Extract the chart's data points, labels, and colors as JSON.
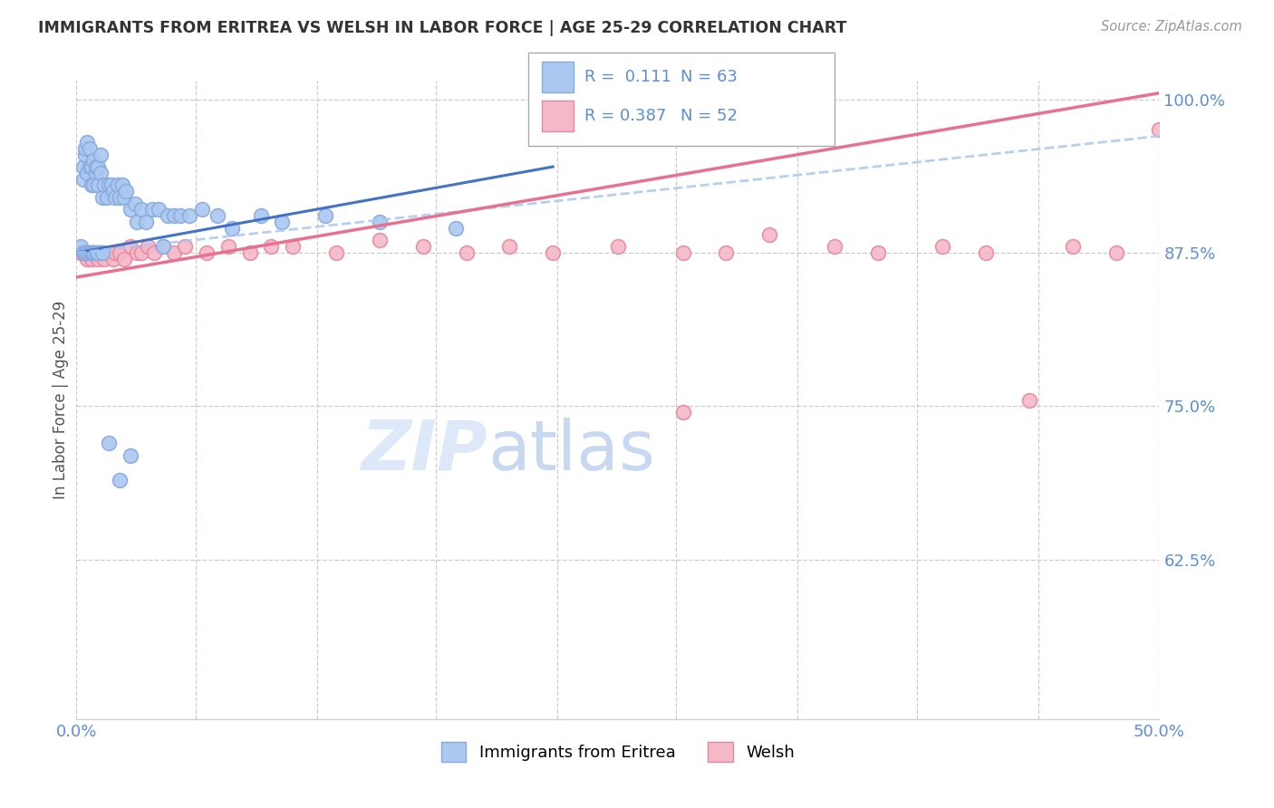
{
  "title": "IMMIGRANTS FROM ERITREA VS WELSH IN LABOR FORCE | AGE 25-29 CORRELATION CHART",
  "source": "Source: ZipAtlas.com",
  "ylabel": "In Labor Force | Age 25-29",
  "xlim": [
    0.0,
    0.5
  ],
  "ylim": [
    0.495,
    1.015
  ],
  "xtick_labels": [
    "0.0%",
    "",
    "",
    "",
    "",
    "",
    "",
    "",
    "",
    "50.0%"
  ],
  "xtick_positions": [
    0.0,
    0.055,
    0.111,
    0.166,
    0.222,
    0.277,
    0.333,
    0.388,
    0.444,
    0.5
  ],
  "ytick_labels": [
    "100.0%",
    "87.5%",
    "75.0%",
    "62.5%",
    ""
  ],
  "ytick_positions": [
    1.0,
    0.875,
    0.75,
    0.625,
    0.5
  ],
  "grid_color": "#cccccc",
  "background_color": "#ffffff",
  "title_color": "#333333",
  "axis_color": "#5b8dd9",
  "watermark_color": "#dde8f8",
  "watermark_fontsize": 55,
  "series": [
    {
      "name": "Immigrants from Eritrea",
      "R": 0.111,
      "N": 63,
      "scatter_color": "#aac8f0",
      "scatter_edge": "#88aadd",
      "trend_color": "#4472c4",
      "trend_style": "solid",
      "trend_x0": 0.0,
      "trend_x1": 0.22,
      "trend_y0": 0.875,
      "trend_y1": 0.945,
      "legend_color": "#aac8f0",
      "legend_edge": "#88aadd"
    },
    {
      "name": "Welsh",
      "R": 0.387,
      "N": 52,
      "scatter_color": "#f4b8c8",
      "scatter_edge": "#e888a0",
      "trend_color": "#e87090",
      "trend_style": "solid",
      "trend_x0": 0.0,
      "trend_x1": 0.5,
      "trend_y0": 0.855,
      "trend_y1": 1.005,
      "legend_color": "#f4b8c8",
      "legend_edge": "#e888a0"
    }
  ],
  "blue_x": [
    0.003,
    0.003,
    0.004,
    0.004,
    0.005,
    0.005,
    0.006,
    0.006,
    0.007,
    0.007,
    0.008,
    0.008,
    0.009,
    0.009,
    0.01,
    0.01,
    0.011,
    0.011,
    0.012,
    0.013,
    0.014,
    0.015,
    0.016,
    0.017,
    0.018,
    0.019,
    0.02,
    0.021,
    0.022,
    0.023,
    0.025,
    0.027,
    0.028,
    0.03,
    0.032,
    0.035,
    0.038,
    0.04,
    0.042,
    0.045,
    0.048,
    0.052,
    0.058,
    0.065,
    0.072,
    0.085,
    0.095,
    0.115,
    0.14,
    0.175,
    0.002,
    0.003,
    0.004,
    0.005,
    0.006,
    0.007,
    0.008,
    0.009,
    0.01,
    0.012,
    0.015,
    0.02,
    0.025
  ],
  "blue_y": [
    0.945,
    0.935,
    0.955,
    0.96,
    0.965,
    0.94,
    0.945,
    0.96,
    0.945,
    0.93,
    0.95,
    0.93,
    0.94,
    0.945,
    0.93,
    0.945,
    0.94,
    0.955,
    0.92,
    0.93,
    0.92,
    0.93,
    0.93,
    0.925,
    0.92,
    0.93,
    0.92,
    0.93,
    0.92,
    0.925,
    0.91,
    0.915,
    0.9,
    0.91,
    0.9,
    0.91,
    0.91,
    0.88,
    0.905,
    0.905,
    0.905,
    0.905,
    0.91,
    0.905,
    0.895,
    0.905,
    0.9,
    0.905,
    0.9,
    0.895,
    0.88,
    0.875,
    0.875,
    0.875,
    0.875,
    0.875,
    0.875,
    0.875,
    0.875,
    0.875,
    0.72,
    0.69,
    0.71
  ],
  "pink_x": [
    0.003,
    0.004,
    0.005,
    0.006,
    0.007,
    0.008,
    0.009,
    0.01,
    0.011,
    0.012,
    0.013,
    0.015,
    0.017,
    0.018,
    0.02,
    0.022,
    0.025,
    0.028,
    0.03,
    0.033,
    0.036,
    0.04,
    0.045,
    0.05,
    0.06,
    0.07,
    0.08,
    0.09,
    0.1,
    0.12,
    0.14,
    0.16,
    0.18,
    0.2,
    0.22,
    0.25,
    0.28,
    0.3,
    0.32,
    0.35,
    0.37,
    0.4,
    0.42,
    0.44,
    0.46,
    0.48,
    0.5,
    0.002,
    0.003,
    0.005,
    0.008,
    0.28
  ],
  "pink_y": [
    0.875,
    0.875,
    0.87,
    0.875,
    0.87,
    0.875,
    0.875,
    0.87,
    0.875,
    0.875,
    0.87,
    0.875,
    0.87,
    0.875,
    0.875,
    0.87,
    0.88,
    0.875,
    0.875,
    0.88,
    0.875,
    0.88,
    0.875,
    0.88,
    0.875,
    0.88,
    0.875,
    0.88,
    0.88,
    0.875,
    0.885,
    0.88,
    0.875,
    0.88,
    0.875,
    0.88,
    0.875,
    0.875,
    0.89,
    0.88,
    0.875,
    0.88,
    0.875,
    0.755,
    0.88,
    0.875,
    0.975,
    0.875,
    0.875,
    0.875,
    0.875,
    0.745
  ]
}
